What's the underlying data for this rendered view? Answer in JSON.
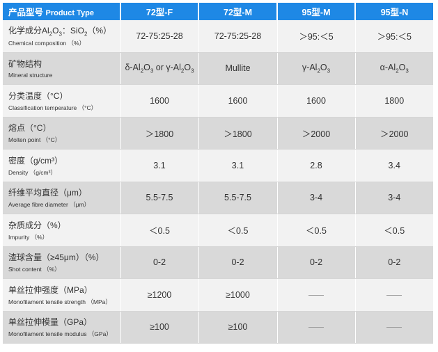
{
  "header": {
    "type_zh": "产品型号",
    "type_en": "Product Type",
    "products": [
      "72型-F",
      "72型-M",
      "95型-M",
      "95型-N"
    ]
  },
  "rows": [
    {
      "zh_parts": [
        "化学成分Al",
        "2",
        "O",
        "3",
        "：SiO",
        "2",
        "（%）"
      ],
      "en": "Chemical composition （%）",
      "values": [
        "72-75:25-28",
        "72-75:25-28",
        "＞95:＜5",
        "＞95:＜5"
      ]
    },
    {
      "zh": "矿物结构",
      "en": "Mineral structure",
      "values": [
        {
          "parts": [
            "δ-Al",
            "2",
            "O",
            "3",
            " or γ-Al",
            "2",
            "O",
            "3"
          ]
        },
        "Mullite",
        {
          "parts": [
            "γ-Al",
            "2",
            "O",
            "3"
          ]
        },
        {
          "parts": [
            "α-Al",
            "2",
            "O",
            "3"
          ]
        }
      ]
    },
    {
      "zh": "分类温度（°C）",
      "en": "Classification temperature （°C）",
      "values": [
        "1600",
        "1600",
        "1600",
        "1800"
      ]
    },
    {
      "zh": "熔点（°C）",
      "en": "Molten point （°C）",
      "values": [
        "＞1800",
        "＞1800",
        "＞2000",
        "＞2000"
      ]
    },
    {
      "zh": "密度（g/cm³）",
      "en": "Density （g/cm³）",
      "values": [
        "3.1",
        "3.1",
        "2.8",
        "3.4"
      ]
    },
    {
      "zh": "纤维平均直径（μm）",
      "en": "Average fibre diameter （μm）",
      "values": [
        "5.5-7.5",
        "5.5-7.5",
        "3-4",
        "3-4"
      ]
    },
    {
      "zh": "杂质成分（%）",
      "en": "Impurity （%）",
      "values": [
        "＜0.5",
        "＜0.5",
        "＜0.5",
        "＜0.5"
      ]
    },
    {
      "zh": "渣球含量（≥45μm）（%）",
      "en": "Shot content （%）",
      "values": [
        "0-2",
        "0-2",
        "0-2",
        "0-2"
      ]
    },
    {
      "zh": "单丝拉伸强度（MPa）",
      "en": "Monofilament tensile strength （MPa）",
      "values": [
        "≥1200",
        "≥1000",
        null,
        null
      ]
    },
    {
      "zh": "单丝拉伸模量（GPa）",
      "en": "Monofilament tensile modulus （GPa）",
      "values": [
        "≥100",
        "≥100",
        null,
        null
      ]
    }
  ],
  "colors": {
    "header_bg": "#1e88e5",
    "row_light": "#f2f2f2",
    "row_dark": "#d9d9d9"
  }
}
